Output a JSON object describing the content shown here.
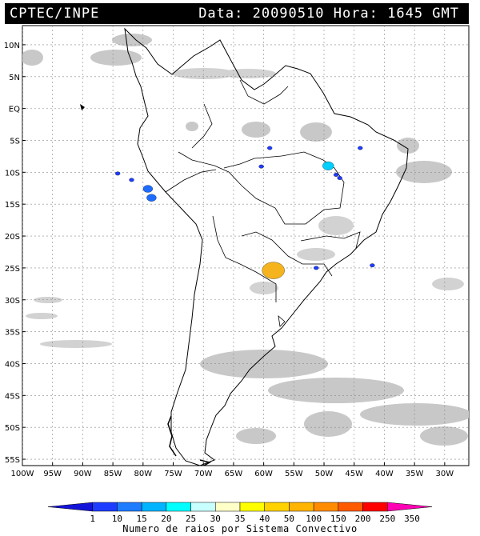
{
  "header": {
    "title": "CPTEC/INPE",
    "datetime": "Data: 20090510 Hora: 1645 GMT"
  },
  "map": {
    "lat_labels": [
      "10N",
      "5N",
      "EQ",
      "5S",
      "10S",
      "15S",
      "20S",
      "25S",
      "30S",
      "35S",
      "40S",
      "45S",
      "50S",
      "55S"
    ],
    "lat_values": [
      10,
      5,
      0,
      -5,
      -10,
      -15,
      -20,
      -25,
      -30,
      -35,
      -40,
      -45,
      -50,
      -55
    ],
    "lon_labels": [
      "100W",
      "95W",
      "90W",
      "85W",
      "80W",
      "75W",
      "70W",
      "65W",
      "60W",
      "55W",
      "50W",
      "45W",
      "40W",
      "35W",
      "30W"
    ],
    "lon_values": [
      -100,
      -95,
      -90,
      -85,
      -80,
      -75,
      -70,
      -65,
      -60,
      -55,
      -50,
      -45,
      -40,
      -35,
      -30
    ],
    "lon_range": [
      -100,
      -26
    ],
    "lat_range": [
      -56,
      13
    ],
    "cloud_color": "#c8c8c8",
    "lightning_clusters": [
      {
        "lon": -84.2,
        "lat": -10.2,
        "rays": 1,
        "color": "#1e3cff"
      },
      {
        "lon": -81.9,
        "lat": -11.2,
        "rays": 1,
        "color": "#1e3cff"
      },
      {
        "lon": -79.2,
        "lat": -12.6,
        "rays": 5,
        "color": "#1e6cff"
      },
      {
        "lon": -78.6,
        "lat": -14.0,
        "rays": 5,
        "color": "#1e6cff"
      },
      {
        "lon": -59.0,
        "lat": -6.2,
        "rays": 1,
        "color": "#1e3cff"
      },
      {
        "lon": -60.4,
        "lat": -9.1,
        "rays": 1,
        "color": "#1e3cff"
      },
      {
        "lon": -49.3,
        "lat": -9.0,
        "rays": 15,
        "color": "#00d0ff"
      },
      {
        "lon": -48.0,
        "lat": -10.4,
        "rays": 1,
        "color": "#1e3cff"
      },
      {
        "lon": -47.4,
        "lat": -10.9,
        "rays": 1,
        "color": "#1e3cff"
      },
      {
        "lon": -44.0,
        "lat": -6.2,
        "rays": 1,
        "color": "#1e3cff"
      },
      {
        "lon": -51.3,
        "lat": -25.0,
        "rays": 1,
        "color": "#1e3cff"
      },
      {
        "lon": -42.0,
        "lat": -24.6,
        "rays": 1,
        "color": "#1e3cff"
      },
      {
        "lon": -58.4,
        "lat": -25.4,
        "rays": 60,
        "color": "#f5b41e"
      }
    ]
  },
  "legend": {
    "ticks": [
      "1",
      "10",
      "15",
      "20",
      "25",
      "30",
      "35",
      "40",
      "50",
      "100",
      "150",
      "200",
      "250",
      "350"
    ],
    "colors": [
      "#1414d8",
      "#1e3cff",
      "#1e7cff",
      "#00b4ff",
      "#00ffff",
      "#c8ffff",
      "#ffffc8",
      "#ffff00",
      "#ffd200",
      "#ffb400",
      "#ff8c00",
      "#ff5a00",
      "#ff0000",
      "#ff00b4"
    ],
    "label": "Numero de raios por Sistema Convectivo"
  }
}
